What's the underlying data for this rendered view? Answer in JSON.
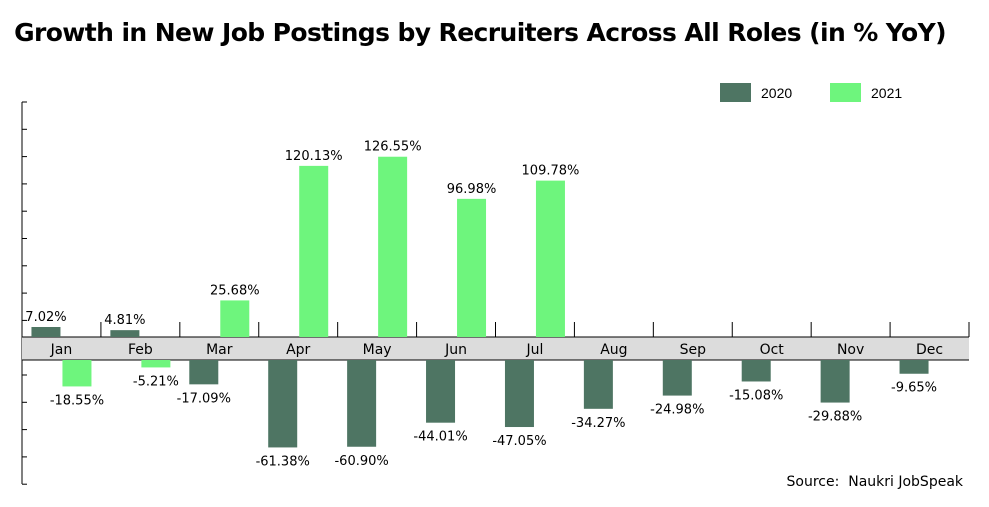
{
  "chart_data": {
    "type": "bar",
    "title": "Growth in New Job Postings by Recruiters Across All Roles (in % YoY)",
    "categories": [
      "Jan",
      "Feb",
      "Mar",
      "Apr",
      "May",
      "Jun",
      "Jul",
      "Aug",
      "Sep",
      "Oct",
      "Nov",
      "Dec"
    ],
    "series": [
      {
        "name": "2020",
        "color": "#4e7563",
        "values": [
          7.02,
          4.81,
          -17.09,
          -61.38,
          -60.9,
          -44.01,
          -47.05,
          -34.27,
          -24.98,
          -15.08,
          -29.88,
          -9.65
        ],
        "labels": [
          "7.02%",
          "4.81%",
          "-17.09%",
          "-61.38%",
          "-60.90%",
          "-44.01%",
          "-47.05%",
          "-34.27%",
          "-24.98%",
          "-15.08%",
          "-29.88%",
          "-9.65%"
        ]
      },
      {
        "name": "2021",
        "color": "#6ef57d",
        "values": [
          -18.55,
          -5.21,
          25.68,
          120.13,
          126.55,
          96.98,
          109.78,
          null,
          null,
          null,
          null,
          null
        ],
        "labels": [
          "-18.55%",
          "-5.21%",
          "25.68%",
          "120.13%",
          "126.55%",
          "96.98%",
          "109.78%",
          null,
          null,
          null,
          null,
          null
        ]
      }
    ],
    "ylim": [
      -90,
      160
    ],
    "legend_position": "top-right",
    "grid": false,
    "category_band_color": "#dcdcdc",
    "source": "Source:  Naukri JobSpeak"
  }
}
